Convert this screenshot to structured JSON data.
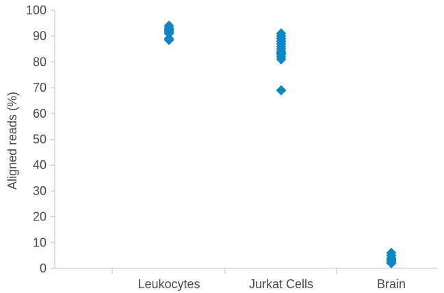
{
  "chart_data": {
    "type": "scatter",
    "title": "",
    "xlabel": "",
    "ylabel": "Aligned reads (%)",
    "categories": [
      "Leukocytes",
      "Jurkat Cells",
      "Brain"
    ],
    "ylim": [
      0,
      100
    ],
    "yticks": [
      0,
      10,
      20,
      30,
      40,
      50,
      60,
      70,
      80,
      90,
      100
    ],
    "grid": false,
    "marker": "diamond",
    "series": [
      {
        "color": "#0e86c6",
        "points": [
          {
            "category": "Leukocytes",
            "values": [
              94,
              93,
              92.5,
              92,
              91.5,
              91,
              89,
              88.5
            ]
          },
          {
            "category": "Jurkat Cells",
            "values": [
              91,
              90,
              89,
              88,
              87,
              86,
              85,
              84,
              83.5,
              83,
              82,
              81,
              69
            ]
          },
          {
            "category": "Brain",
            "values": [
              6,
              5,
              4,
              3.5,
              3,
              2.5,
              2
            ]
          }
        ]
      }
    ]
  }
}
